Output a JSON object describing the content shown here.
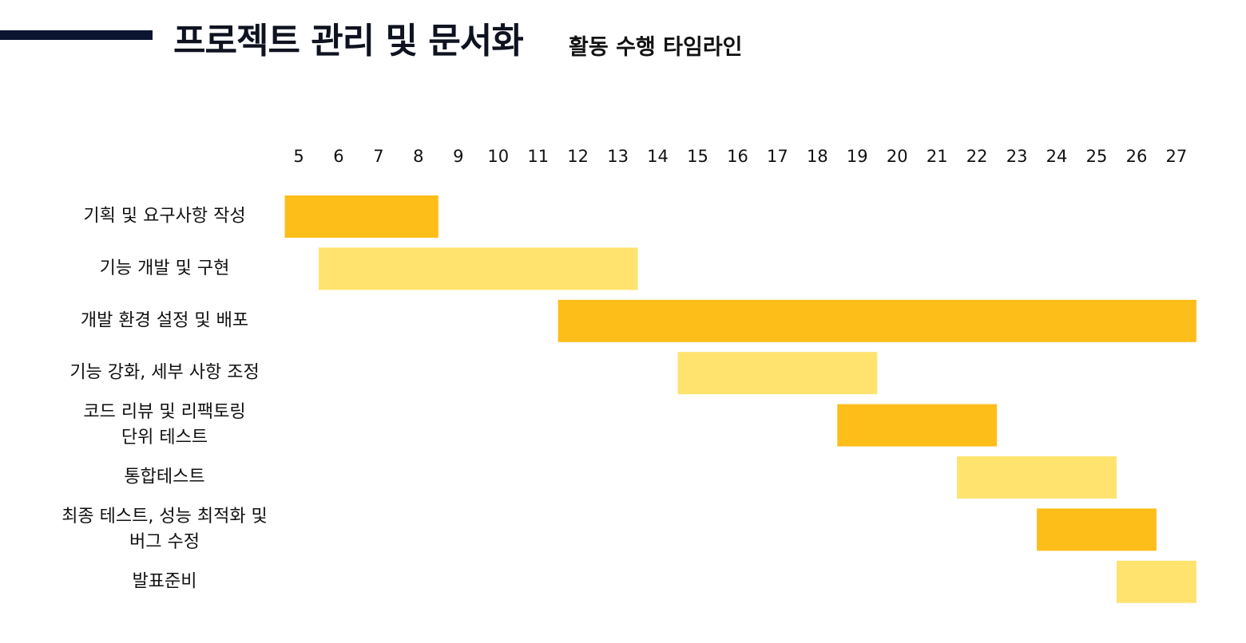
{
  "header": {
    "title": "프로젝트 관리 및 문서화",
    "subtitle": "활동 수행 타임라인"
  },
  "colors": {
    "accent_bar": "#0b1530",
    "bar_dark": "#FDBE1A",
    "bar_light": "#FFE36E"
  },
  "chart_data": {
    "type": "gantt",
    "x_ticks": [
      5,
      6,
      7,
      8,
      9,
      10,
      11,
      12,
      13,
      14,
      15,
      16,
      17,
      18,
      19,
      20,
      21,
      22,
      23,
      24,
      25,
      26,
      27
    ],
    "xlim": [
      4.65,
      27.5
    ],
    "grid": false,
    "tasks": [
      {
        "label": [
          "기획 및 요구사항 작성"
        ],
        "start": 4.65,
        "end": 8.5,
        "shade": "dark"
      },
      {
        "label": [
          "기능 개발 및 구현"
        ],
        "start": 5.5,
        "end": 13.5,
        "shade": "light"
      },
      {
        "label": [
          "개발 환경 설정 및 배포"
        ],
        "start": 11.5,
        "end": 27.5,
        "shade": "dark"
      },
      {
        "label": [
          "기능 강화, 세부 사항 조정"
        ],
        "start": 14.5,
        "end": 19.5,
        "shade": "light"
      },
      {
        "label": [
          "코드 리뷰 및 리팩토링",
          "단위 테스트"
        ],
        "start": 18.5,
        "end": 22.5,
        "shade": "dark"
      },
      {
        "label": [
          "통합테스트"
        ],
        "start": 21.5,
        "end": 25.5,
        "shade": "light"
      },
      {
        "label": [
          "최종 테스트, 성능 최적화 및",
          "버그 수정"
        ],
        "start": 23.5,
        "end": 26.5,
        "shade": "dark"
      },
      {
        "label": [
          "발표준비"
        ],
        "start": 25.5,
        "end": 27.5,
        "shade": "light"
      }
    ]
  }
}
